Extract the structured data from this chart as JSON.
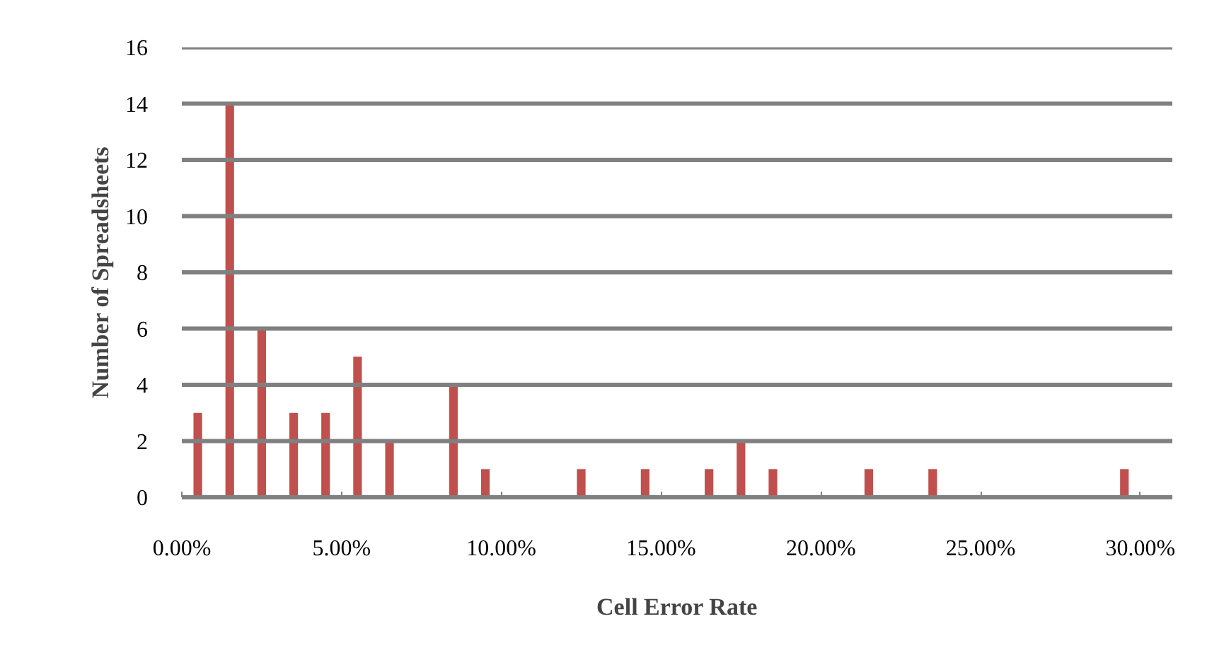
{
  "chart_data": {
    "type": "bar",
    "xlabel": "Cell Error Rate",
    "ylabel": "Number of Spreadsheets",
    "x": [
      0.5,
      1.5,
      2.5,
      3.5,
      4.5,
      5.5,
      6.5,
      8.5,
      9.5,
      12.5,
      14.5,
      16.5,
      17.5,
      18.5,
      21.5,
      23.5,
      29.5
    ],
    "values": [
      3,
      14,
      6,
      3,
      3,
      5,
      2,
      4,
      1,
      1,
      1,
      1,
      2,
      1,
      1,
      1,
      1
    ],
    "color": "#c0504d",
    "xlim": [
      0,
      31
    ],
    "xticks": [
      {
        "value": 0,
        "label": "0.00%"
      },
      {
        "value": 5,
        "label": "5.00%"
      },
      {
        "value": 10,
        "label": "10.00%"
      },
      {
        "value": 15,
        "label": "15.00%"
      },
      {
        "value": 20,
        "label": "20.00%"
      },
      {
        "value": 25,
        "label": "25.00%"
      },
      {
        "value": 30,
        "label": "30.00%"
      }
    ],
    "ylim": [
      0,
      16
    ],
    "yticks": [
      0,
      2,
      4,
      6,
      8,
      10,
      12,
      14,
      16
    ],
    "grid": "y"
  }
}
